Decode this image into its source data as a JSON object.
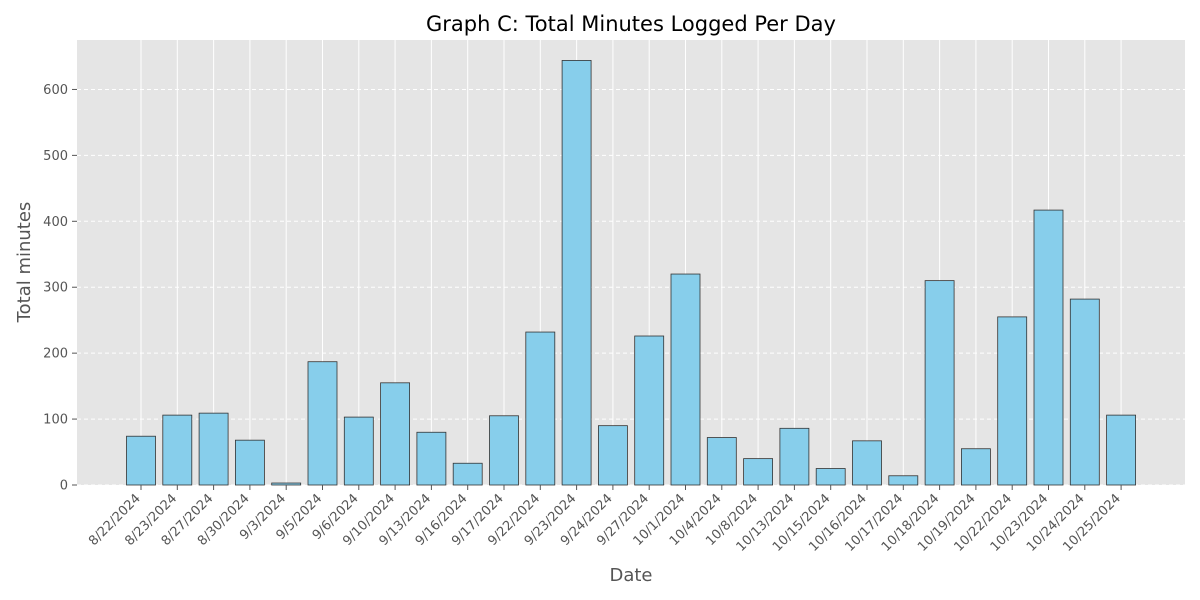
{
  "chart_data": {
    "type": "bar",
    "title": "Graph C: Total Minutes Logged Per Day",
    "xlabel": "Date",
    "ylabel": "Total minutes",
    "ylim": [
      0,
      675
    ],
    "yticks": [
      0,
      100,
      200,
      300,
      400,
      500,
      600
    ],
    "grid": true,
    "categories": [
      "8/22/2024",
      "8/23/2024",
      "8/27/2024",
      "8/30/2024",
      "9/3/2024",
      "9/5/2024",
      "9/6/2024",
      "9/10/2024",
      "9/13/2024",
      "9/16/2024",
      "9/17/2024",
      "9/22/2024",
      "9/23/2024",
      "9/24/2024",
      "9/27/2024",
      "10/1/2024",
      "10/4/2024",
      "10/8/2024",
      "10/13/2024",
      "10/15/2024",
      "10/16/2024",
      "10/17/2024",
      "10/18/2024",
      "10/19/2024",
      "10/22/2024",
      "10/23/2024",
      "10/24/2024",
      "10/25/2024"
    ],
    "values": [
      74,
      106,
      109,
      68,
      3,
      187,
      103,
      155,
      80,
      33,
      105,
      232,
      644,
      90,
      226,
      320,
      72,
      40,
      86,
      25,
      67,
      14,
      310,
      55,
      255,
      417,
      282,
      106
    ],
    "colors": {
      "bar": "#87ceeb",
      "edge": "#333333",
      "background": "#e5e5e5",
      "grid": "#ffffff"
    }
  }
}
